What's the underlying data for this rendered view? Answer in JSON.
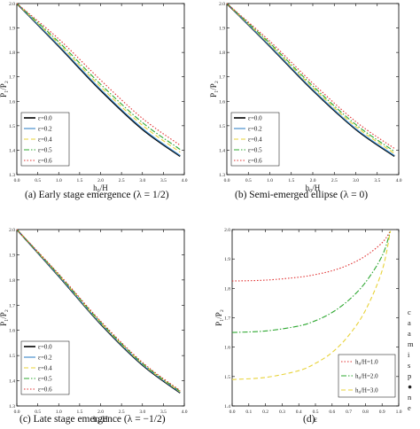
{
  "captions": {
    "a": "(a)  Early stage emergence (λ = 1/2)",
    "b": "(b)  Semi-emerged ellipse (λ = 0)",
    "c": "(c)  Late stage emergence (λ = −1/2)",
    "d": "(d)"
  },
  "side_text": [
    "c",
    "a",
    "a",
    "m",
    "i",
    "s",
    "p",
    "●",
    "n",
    "e"
  ],
  "chart_data": [
    {
      "id": "a",
      "type": "line",
      "xlabel": "h₀/H",
      "ylabel": "P₁/P₂",
      "xlim": [
        0,
        4.0
      ],
      "ylim": [
        1.3,
        2.0
      ],
      "xticks": [
        "0.0",
        "0.5",
        "1.0",
        "1.5",
        "2.0",
        "2.5",
        "3.0",
        "3.5",
        "4.0"
      ],
      "yticks": [
        "1.3",
        "1.4",
        "1.5",
        "1.6",
        "1.7",
        "1.8",
        "1.9",
        "2.0"
      ],
      "legend_position": "bottom-left",
      "series": [
        {
          "name": "ε=0.0",
          "color": "#000000",
          "dash": "solid",
          "x": [
            0,
            1,
            2,
            3,
            3.9
          ],
          "y": [
            2.0,
            1.825,
            1.645,
            1.485,
            1.375
          ]
        },
        {
          "name": "ε=0.2",
          "color": "#3a86c8",
          "dash": "solid",
          "x": [
            0,
            1,
            2,
            3,
            3.9
          ],
          "y": [
            2.0,
            1.828,
            1.649,
            1.489,
            1.378
          ]
        },
        {
          "name": "ε=0.4",
          "color": "#e8d33a",
          "dash": "dashed",
          "x": [
            0,
            1,
            2,
            3,
            3.9
          ],
          "y": [
            2.0,
            1.836,
            1.66,
            1.502,
            1.392
          ]
        },
        {
          "name": "ε=0.5",
          "color": "#2fa832",
          "dash": "dashdot",
          "x": [
            0,
            1,
            2,
            3,
            3.9
          ],
          "y": [
            2.0,
            1.843,
            1.67,
            1.513,
            1.403
          ]
        },
        {
          "name": "ε=0.6",
          "color": "#e03030",
          "dash": "dotted",
          "x": [
            0,
            1,
            2,
            3,
            3.9
          ],
          "y": [
            2.0,
            1.855,
            1.687,
            1.53,
            1.42
          ]
        }
      ]
    },
    {
      "id": "b",
      "type": "line",
      "xlabel": "h₀/H",
      "ylabel": "P₁/P₂",
      "xlim": [
        0,
        4.0
      ],
      "ylim": [
        1.3,
        2.0
      ],
      "xticks": [
        "0.0",
        "0.5",
        "1.0",
        "1.5",
        "2.0",
        "2.5",
        "3.0",
        "3.5",
        "4.0"
      ],
      "yticks": [
        "1.3",
        "1.4",
        "1.5",
        "1.6",
        "1.7",
        "1.8",
        "1.9",
        "2.0"
      ],
      "legend_position": "bottom-left",
      "series": [
        {
          "name": "ε=0.0",
          "color": "#000000",
          "dash": "solid",
          "x": [
            0,
            1,
            2,
            3,
            3.9
          ],
          "y": [
            2.0,
            1.825,
            1.645,
            1.485,
            1.375
          ]
        },
        {
          "name": "ε=0.2",
          "color": "#3a86c8",
          "dash": "solid",
          "x": [
            0,
            1,
            2,
            3,
            3.9
          ],
          "y": [
            2.0,
            1.827,
            1.648,
            1.488,
            1.378
          ]
        },
        {
          "name": "ε=0.4",
          "color": "#e8d33a",
          "dash": "dashed",
          "x": [
            0,
            1,
            2,
            3,
            3.9
          ],
          "y": [
            2.0,
            1.833,
            1.656,
            1.497,
            1.387
          ]
        },
        {
          "name": "ε=0.5",
          "color": "#2fa832",
          "dash": "dashdot",
          "x": [
            0,
            1,
            2,
            3,
            3.9
          ],
          "y": [
            2.0,
            1.838,
            1.663,
            1.505,
            1.395
          ]
        },
        {
          "name": "ε=0.6",
          "color": "#e03030",
          "dash": "dotted",
          "x": [
            0,
            1,
            2,
            3,
            3.9
          ],
          "y": [
            2.0,
            1.846,
            1.674,
            1.517,
            1.407
          ]
        }
      ]
    },
    {
      "id": "c",
      "type": "line",
      "xlabel": "h₀/H",
      "ylabel": "P₁/P₂",
      "xlim": [
        0,
        4.0
      ],
      "ylim": [
        1.3,
        2.0
      ],
      "xticks": [
        "0.0",
        "0.5",
        "1.0",
        "1.5",
        "2.0",
        "2.5",
        "3.0",
        "3.5",
        "4.0"
      ],
      "yticks": [
        "1.3",
        "1.4",
        "1.5",
        "1.6",
        "1.7",
        "1.8",
        "1.9",
        "2.0"
      ],
      "legend_position": "bottom-left",
      "series": [
        {
          "name": "ε=0.0",
          "color": "#000000",
          "dash": "solid",
          "x": [
            0,
            1,
            2,
            3,
            3.9
          ],
          "y": [
            2.0,
            1.815,
            1.625,
            1.462,
            1.352
          ]
        },
        {
          "name": "ε=0.2",
          "color": "#3a86c8",
          "dash": "solid",
          "x": [
            0,
            1,
            2,
            3,
            3.9
          ],
          "y": [
            2.0,
            1.816,
            1.627,
            1.464,
            1.354
          ]
        },
        {
          "name": "ε=0.4",
          "color": "#e8d33a",
          "dash": "dashed",
          "x": [
            0,
            1,
            2,
            3,
            3.9
          ],
          "y": [
            2.0,
            1.819,
            1.63,
            1.467,
            1.356
          ]
        },
        {
          "name": "ε=0.5",
          "color": "#2fa832",
          "dash": "dashdot",
          "x": [
            0,
            1,
            2,
            3,
            3.9
          ],
          "y": [
            2.0,
            1.821,
            1.633,
            1.469,
            1.358
          ]
        },
        {
          "name": "ε=0.6",
          "color": "#e03030",
          "dash": "dotted",
          "x": [
            0,
            1,
            2,
            3,
            3.9
          ],
          "y": [
            2.0,
            1.824,
            1.637,
            1.473,
            1.361
          ]
        }
      ]
    },
    {
      "id": "d",
      "type": "line",
      "xlabel": "ε",
      "ylabel": "P₁/P₂",
      "xlim": [
        0,
        1.0
      ],
      "ylim": [
        1.4,
        2.0
      ],
      "xticks": [
        "0.0",
        "0.1",
        "0.2",
        "0.3",
        "0.4",
        "0.5",
        "0.6",
        "0.7",
        "0.8",
        "0.9",
        "1.0"
      ],
      "yticks": [
        "1.4",
        "1.5",
        "1.6",
        "1.7",
        "1.8",
        "1.9",
        "2.0"
      ],
      "legend_position": "bottom-right",
      "series": [
        {
          "name": "h₀/H=1.0",
          "color": "#e03030",
          "dash": "dotted",
          "x": [
            0,
            0.2,
            0.4,
            0.5,
            0.6,
            0.7,
            0.8,
            0.9,
            0.95
          ],
          "y": [
            1.825,
            1.828,
            1.838,
            1.847,
            1.86,
            1.88,
            1.91,
            1.955,
            1.995
          ]
        },
        {
          "name": "h₀/H=2.0",
          "color": "#2fa832",
          "dash": "dashdot",
          "x": [
            0,
            0.2,
            0.4,
            0.5,
            0.6,
            0.7,
            0.8,
            0.9,
            0.95
          ],
          "y": [
            1.65,
            1.655,
            1.672,
            1.69,
            1.718,
            1.76,
            1.82,
            1.91,
            1.995
          ]
        },
        {
          "name": "h₀/H=3.0",
          "color": "#e8d33a",
          "dash": "dashed",
          "x": [
            0,
            0.2,
            0.4,
            0.5,
            0.6,
            0.7,
            0.8,
            0.9,
            0.95
          ],
          "y": [
            1.49,
            1.497,
            1.52,
            1.545,
            1.582,
            1.64,
            1.725,
            1.86,
            1.995
          ]
        }
      ]
    }
  ]
}
